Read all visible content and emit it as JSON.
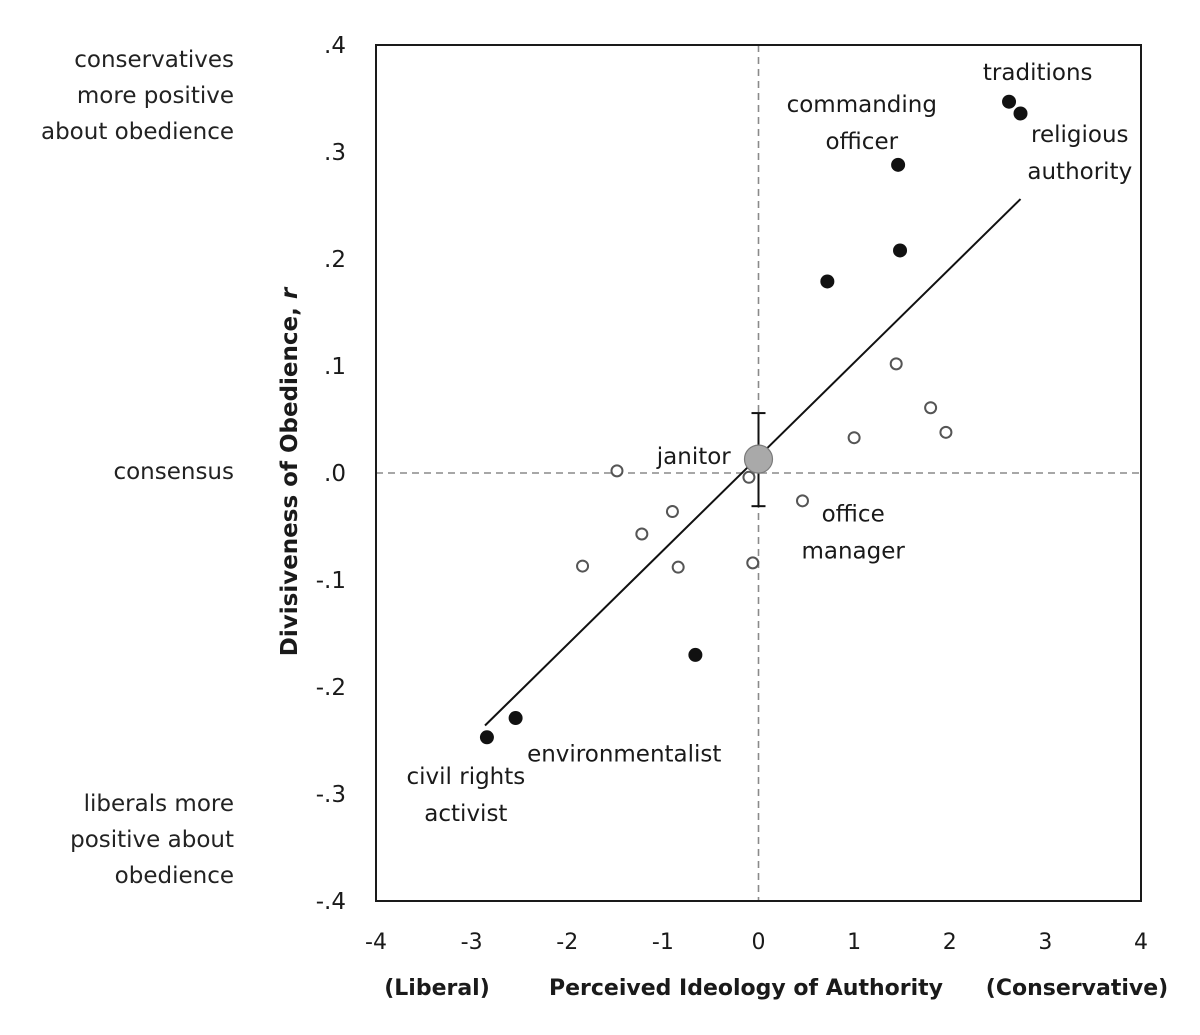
{
  "chart_data": {
    "type": "scatter",
    "title": "",
    "xlabel": "Perceived Ideology of Authority",
    "ylabel": "Divisiveness of Obedience, r",
    "x_left_label": "(Liberal)",
    "x_right_label": "(Conservative)",
    "xlim": [
      -4,
      4
    ],
    "ylim": [
      -0.4,
      0.4
    ],
    "x_ticks": [
      -4,
      -3,
      -2,
      -1,
      0,
      1,
      2,
      3,
      4
    ],
    "x_tick_labels": [
      "-4",
      "-3",
      "-2",
      "-1",
      "0",
      "1",
      "2",
      "3",
      "4"
    ],
    "y_ticks": [
      0.4,
      0.3,
      0.2,
      0.1,
      0.0,
      -0.1,
      -0.2,
      -0.3,
      -0.4
    ],
    "y_tick_labels": [
      ".4",
      ".3",
      ".2",
      ".1",
      ".0",
      "-.1",
      "-.2",
      "-.3",
      "-.4"
    ],
    "grid": false,
    "reference_lines": {
      "x": 0,
      "y": 0,
      "style": "dashed"
    },
    "side_labels": {
      "top": [
        "conservatives",
        "more positive",
        "about obedience"
      ],
      "middle": [
        "consensus"
      ],
      "bottom": [
        "liberals more",
        "positive about",
        "obedience"
      ]
    },
    "series": [
      {
        "marker": "filled",
        "color": "#111111",
        "points": [
          {
            "x": 2.62,
            "y": 0.347
          },
          {
            "x": 2.74,
            "y": 0.336
          },
          {
            "x": 1.46,
            "y": 0.288
          },
          {
            "x": 1.48,
            "y": 0.208
          },
          {
            "x": 0.72,
            "y": 0.179
          },
          {
            "x": -0.66,
            "y": -0.17
          },
          {
            "x": -2.54,
            "y": -0.229
          },
          {
            "x": -2.84,
            "y": -0.247
          }
        ]
      },
      {
        "marker": "open",
        "color": "#555555",
        "points": [
          {
            "x": 1.44,
            "y": 0.102
          },
          {
            "x": 1.8,
            "y": 0.061
          },
          {
            "x": 1.96,
            "y": 0.038
          },
          {
            "x": 1.0,
            "y": 0.033
          },
          {
            "x": -1.48,
            "y": 0.002
          },
          {
            "x": -0.1,
            "y": -0.004
          },
          {
            "x": 0.46,
            "y": -0.026
          },
          {
            "x": -0.9,
            "y": -0.036
          },
          {
            "x": -1.22,
            "y": -0.057
          },
          {
            "x": -1.84,
            "y": -0.087
          },
          {
            "x": -0.84,
            "y": -0.088
          },
          {
            "x": -0.06,
            "y": -0.084
          }
        ]
      }
    ],
    "centroid": {
      "x": 0.0,
      "y": 0.013,
      "error_low": -0.031,
      "error_high": 0.056,
      "color": "#a9a9a9"
    },
    "fit_line": {
      "x": [
        -2.86,
        2.74
      ],
      "y": [
        -0.236,
        0.256
      ]
    },
    "annotations": [
      {
        "lines": [
          "traditions"
        ],
        "x": 2.92,
        "y": 0.375,
        "anchor": "middle"
      },
      {
        "lines": [
          "commanding",
          "officer"
        ],
        "x": 1.08,
        "y": 0.345,
        "anchor": "middle"
      },
      {
        "lines": [
          "religious",
          "authority"
        ],
        "x": 3.36,
        "y": 0.317,
        "anchor": "middle"
      },
      {
        "lines": [
          "janitor"
        ],
        "x": -0.29,
        "y": 0.016,
        "anchor": "end"
      },
      {
        "lines": [
          "office",
          "manager"
        ],
        "x": 0.99,
        "y": -0.038,
        "anchor": "middle"
      },
      {
        "lines": [
          "environmentalist"
        ],
        "x": -2.42,
        "y": -0.262,
        "anchor": "start"
      },
      {
        "lines": [
          "civil rights",
          "activist"
        ],
        "x": -3.06,
        "y": -0.283,
        "anchor": "middle"
      }
    ]
  }
}
